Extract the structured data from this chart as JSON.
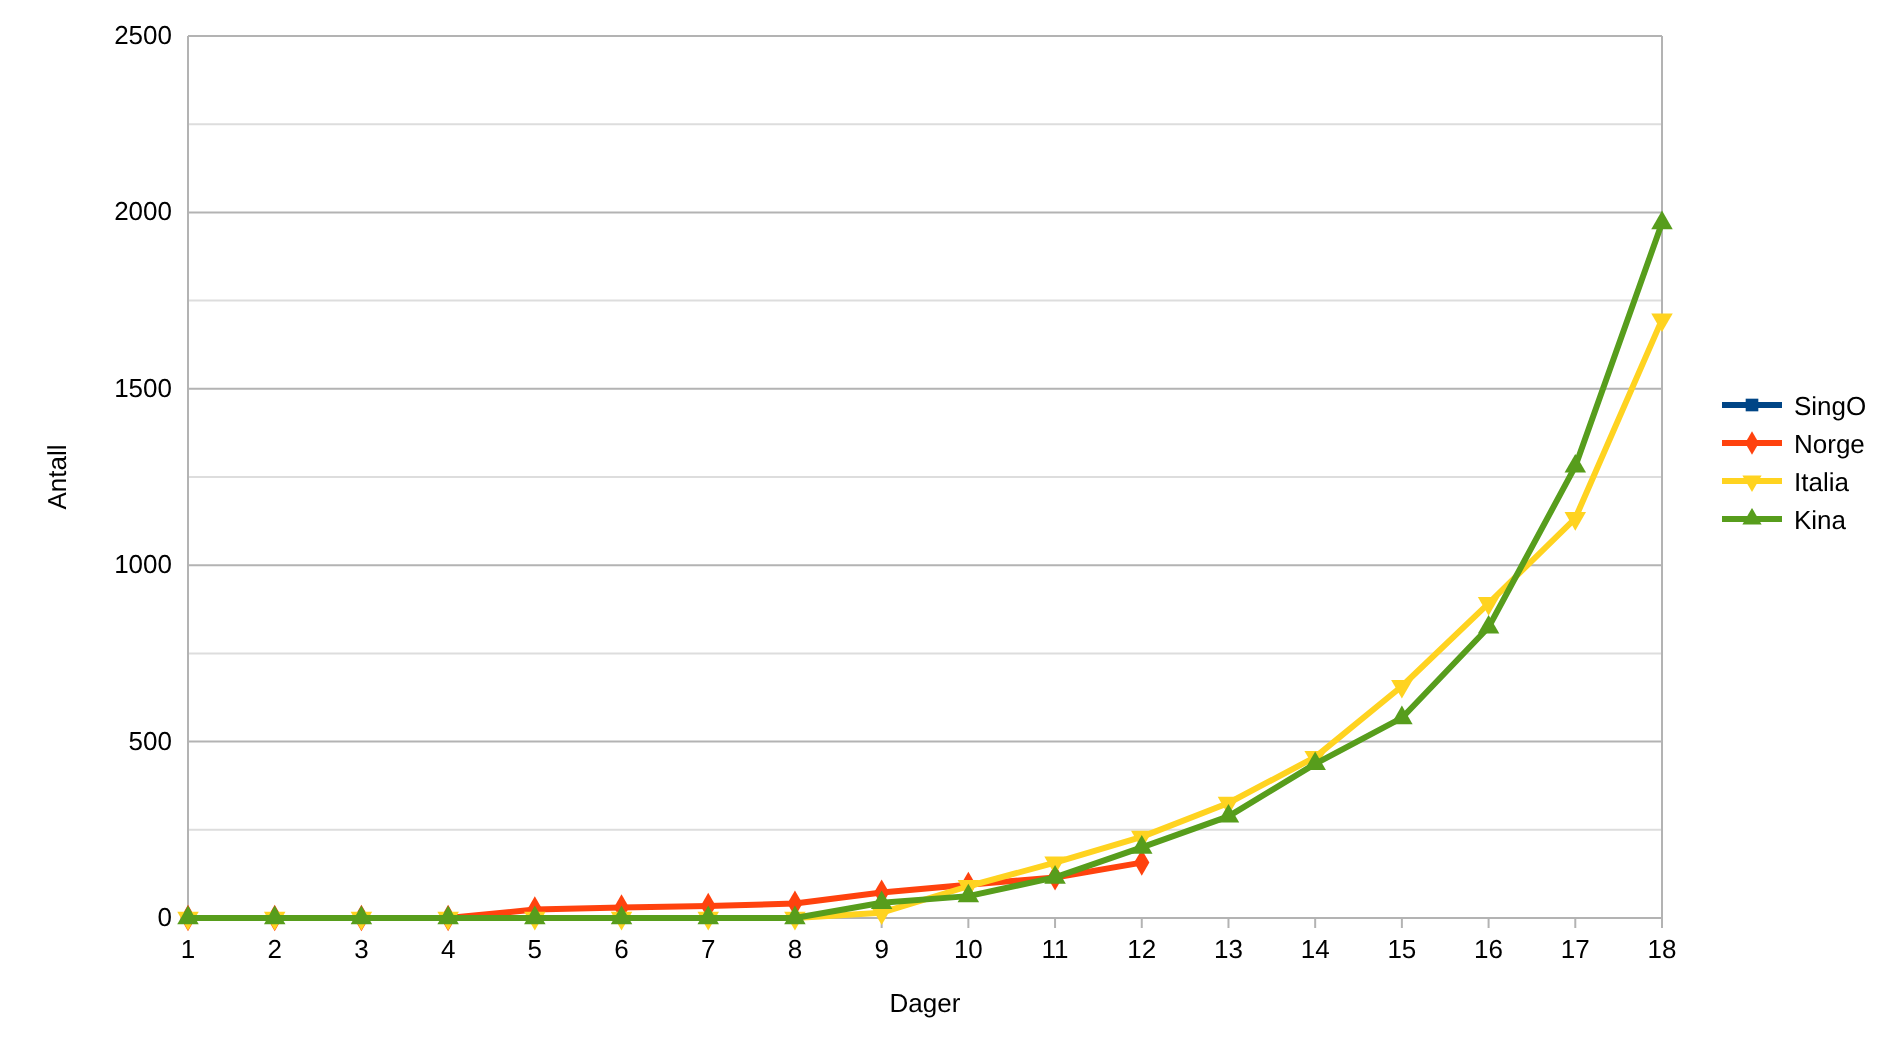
{
  "chart_data": {
    "type": "line",
    "xlabel": "Dager",
    "ylabel": "Antall",
    "x": [
      1,
      2,
      3,
      4,
      5,
      6,
      7,
      8,
      9,
      10,
      11,
      12,
      13,
      14,
      15,
      16,
      17,
      18
    ],
    "xlim": [
      1,
      18
    ],
    "xticks": [
      1,
      2,
      3,
      4,
      5,
      6,
      7,
      8,
      9,
      10,
      11,
      12,
      13,
      14,
      15,
      16,
      17,
      18
    ],
    "ylim": [
      0,
      2500
    ],
    "yticks": [
      0,
      {
        "value": 250,
        "label": null
      },
      500,
      {
        "value": 750,
        "label": null
      },
      1000,
      {
        "value": 1250,
        "label": null
      },
      1500,
      {
        "value": 1750,
        "label": null
      },
      2000,
      {
        "value": 2250,
        "label": null
      },
      2500
    ],
    "grid": "y",
    "legend": "right",
    "line_style": "solid",
    "series": [
      {
        "name": "SingO",
        "color": "#004586",
        "marker": "square",
        "values": [
          null,
          null,
          null,
          null,
          null,
          null,
          null,
          null,
          null,
          null,
          null,
          null,
          null,
          null,
          null,
          null,
          null,
          null
        ]
      },
      {
        "name": "Norge",
        "color": "#ff420e",
        "marker": "diamond",
        "values": [
          0,
          0,
          0,
          0,
          24,
          30,
          34,
          41,
          72,
          94,
          115,
          157,
          null,
          null,
          null,
          null,
          null,
          null
        ]
      },
      {
        "name": "Italia",
        "color": "#ffd320",
        "marker": "triangle-down",
        "values": [
          0,
          0,
          0,
          0,
          0,
          0,
          0,
          0,
          15,
          90,
          157,
          230,
          326,
          456,
          657,
          892,
          1133,
          1696
        ]
      },
      {
        "name": "Kina",
        "color": "#579d1c",
        "marker": "triangle",
        "values": [
          0,
          0,
          0,
          0,
          0,
          0,
          0,
          0,
          43,
          62,
          115,
          200,
          288,
          437,
          567,
          824,
          1280,
          1970
        ]
      }
    ]
  }
}
